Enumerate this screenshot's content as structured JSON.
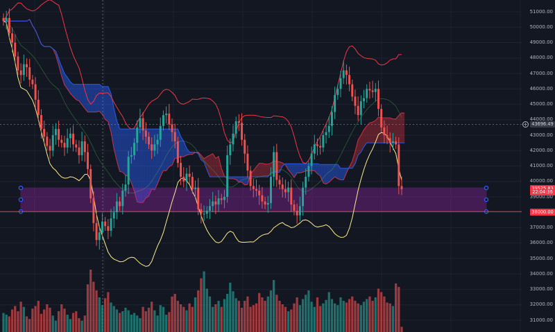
{
  "chart_data": {
    "type": "candlestick",
    "indicators": [
      "Ichimoku cloud",
      "Bollinger Bands",
      "Volume"
    ],
    "y_ticks": [
      51000,
      50000,
      49000,
      48000,
      47000,
      46000,
      45000,
      44000,
      43000,
      42000,
      41000,
      40000,
      39000,
      38000,
      37000,
      36000,
      35000,
      34000,
      33000,
      32000,
      31000
    ],
    "y_tick_labels": [
      "51000.00",
      "50000.00",
      "49000.00",
      "48000.00",
      "47000.00",
      "46000.00",
      "45000.00",
      "44000.00",
      "43000.00",
      "42000.00",
      "41000.00",
      "40000.00",
      "39000.00",
      "38000.00",
      "37000.00",
      "36000.00",
      "35000.00",
      "34000.00",
      "33000.00",
      "32000.00",
      "31000.00"
    ],
    "ylim": [
      30600,
      51500
    ],
    "price_tags": [
      {
        "label": "43696.49",
        "value": 43696.49,
        "kind": "crosshair"
      },
      {
        "label": "39581.16",
        "value": 39581.16,
        "color": "#2962ff"
      },
      {
        "label": "39525.83",
        "value": 39525.83,
        "color": "#f23645"
      },
      {
        "label": "22:04:36",
        "value": 39280,
        "color": "#f23645"
      },
      {
        "label": "38044.73",
        "value": 38044.73,
        "color": "#2962ff"
      },
      {
        "label": "38000.00",
        "value": 38000.0,
        "color": "#f23645"
      }
    ],
    "zone": {
      "top": 39581.16,
      "bottom": 38044.73,
      "color": "#9c27b0"
    },
    "support_line": 38044.73,
    "crosshair_price": 43696.49,
    "colors": {
      "up": "#26a69a",
      "down": "#ef5350",
      "bb_upper": "#f23645",
      "bb_basis": "#ffee8a",
      "cloud_bear": "#2962ff",
      "cloud_bull": "#f23645",
      "background": "#131722"
    },
    "closes": [
      50400,
      50600,
      49600,
      49000,
      48100,
      47200,
      46900,
      47600,
      47400,
      46600,
      46300,
      45300,
      44300,
      43400,
      42900,
      42300,
      42000,
      43000,
      43400,
      42700,
      42500,
      42200,
      42800,
      43100,
      42400,
      42200,
      41700,
      42600,
      41900,
      40800,
      38900,
      37300,
      36200,
      36700,
      37400,
      37100,
      36800,
      37600,
      38000,
      38700,
      38400,
      39400,
      39800,
      41600,
      41700,
      42500,
      43500,
      44100,
      43300,
      42900,
      42400,
      42000,
      42400,
      42700,
      43600,
      44300,
      44400,
      43700,
      43200,
      42600,
      41200,
      40300,
      40000,
      40500,
      40300,
      39500,
      39600,
      38200,
      37900,
      37900,
      38100,
      38400,
      38700,
      38500,
      38900,
      38800,
      39000,
      41700,
      42400,
      43100,
      43900,
      43800,
      42700,
      41800,
      40700,
      39700,
      39500,
      39400,
      39100,
      38700,
      38500,
      38600,
      40300,
      41900,
      40100,
      39800,
      39500,
      39300,
      39600,
      38500,
      38100,
      37800,
      38400,
      39600,
      40300,
      41000,
      41800,
      42400,
      42300,
      42200,
      43000,
      43200,
      43600,
      44500,
      45600,
      46000,
      46700,
      47200,
      46900,
      46300,
      45500,
      44900,
      44300,
      45200,
      45400,
      46000,
      45900,
      45800,
      46000,
      44700,
      43500,
      43000,
      42800,
      42500,
      42600,
      42400,
      39700,
      39500
    ],
    "volume": [
      0.22,
      0.2,
      0.18,
      0.26,
      0.3,
      0.24,
      0.35,
      0.29,
      0.18,
      0.15,
      0.27,
      0.3,
      0.36,
      0.21,
      0.26,
      0.32,
      0.28,
      0.19,
      0.13,
      0.24,
      0.32,
      0.27,
      0.2,
      0.15,
      0.22,
      0.24,
      0.16,
      0.13,
      0.19,
      0.55,
      0.72,
      0.58,
      0.48,
      0.4,
      0.31,
      0.39,
      0.46,
      0.34,
      0.3,
      0.26,
      0.22,
      0.24,
      0.28,
      0.25,
      0.2,
      0.22,
      0.19,
      0.16,
      0.29,
      0.24,
      0.28,
      0.35,
      0.25,
      0.19,
      0.31,
      0.29,
      0.2,
      0.23,
      0.41,
      0.44,
      0.36,
      0.32,
      0.29,
      0.25,
      0.33,
      0.29,
      0.4,
      0.48,
      0.62,
      0.7,
      0.5,
      0.41,
      0.29,
      0.32,
      0.36,
      0.29,
      0.38,
      0.44,
      0.57,
      0.47,
      0.39,
      0.36,
      0.28,
      0.36,
      0.41,
      0.29,
      0.31,
      0.33,
      0.45,
      0.4,
      0.36,
      0.41,
      0.48,
      0.6,
      0.43,
      0.36,
      0.32,
      0.29,
      0.24,
      0.26,
      0.33,
      0.4,
      0.31,
      0.38,
      0.43,
      0.48,
      0.35,
      0.29,
      0.4,
      0.3,
      0.33,
      0.37,
      0.46,
      0.38,
      0.33,
      0.31,
      0.4,
      0.36,
      0.34,
      0.38,
      0.41,
      0.36,
      0.33,
      0.31,
      0.35,
      0.38,
      0.41,
      0.36,
      0.4,
      0.5,
      0.46,
      0.41,
      0.34,
      0.33,
      0.3,
      0.56,
      0.52,
      0.06
    ]
  }
}
